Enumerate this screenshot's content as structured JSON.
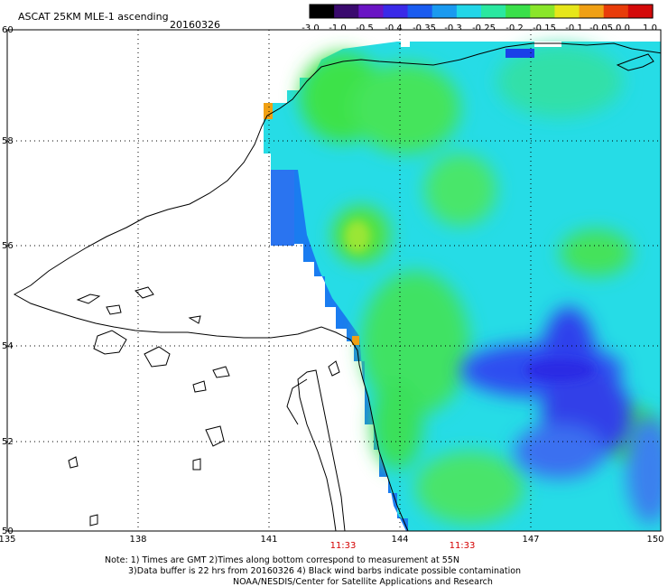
{
  "header": {
    "title": "ASCAT 25KM MLE-1 ascending",
    "date": "20160326"
  },
  "colorbar": {
    "ticks": [
      "-3.0",
      "-1.0",
      "-0.5",
      "-0.4",
      "-0.35",
      "-0.3",
      "-0.25",
      "-0.2",
      "-0.15",
      "-0.1",
      "-0.05",
      "0.0",
      "1.0"
    ],
    "colors": [
      "#000000",
      "#3a0a6e",
      "#6a14c4",
      "#3a2ae8",
      "#1a5cf0",
      "#1a9af0",
      "#22d6e8",
      "#2ae8a0",
      "#3ae04a",
      "#8ae62a",
      "#e6e61a",
      "#f0a014",
      "#e83c0a",
      "#d40a0a"
    ]
  },
  "map": {
    "lat_labels": [
      "60",
      "58",
      "56",
      "54",
      "52",
      "50"
    ],
    "lon_labels": [
      "135",
      "138",
      "141",
      "144",
      "147",
      "150"
    ],
    "pass_times": [
      "11:33",
      "11:33"
    ],
    "time_color": "#d40000"
  },
  "footer": {
    "line1": "Note: 1) Times are GMT 2)Times along bottom correspond to measurement at 55N",
    "line2": "3)Data buffer is 22 hrs from 20160326 4) Black wind barbs indicate possible contamination",
    "line3": "NOAA/NESDIS/Center for Satellite Applications and Research"
  }
}
